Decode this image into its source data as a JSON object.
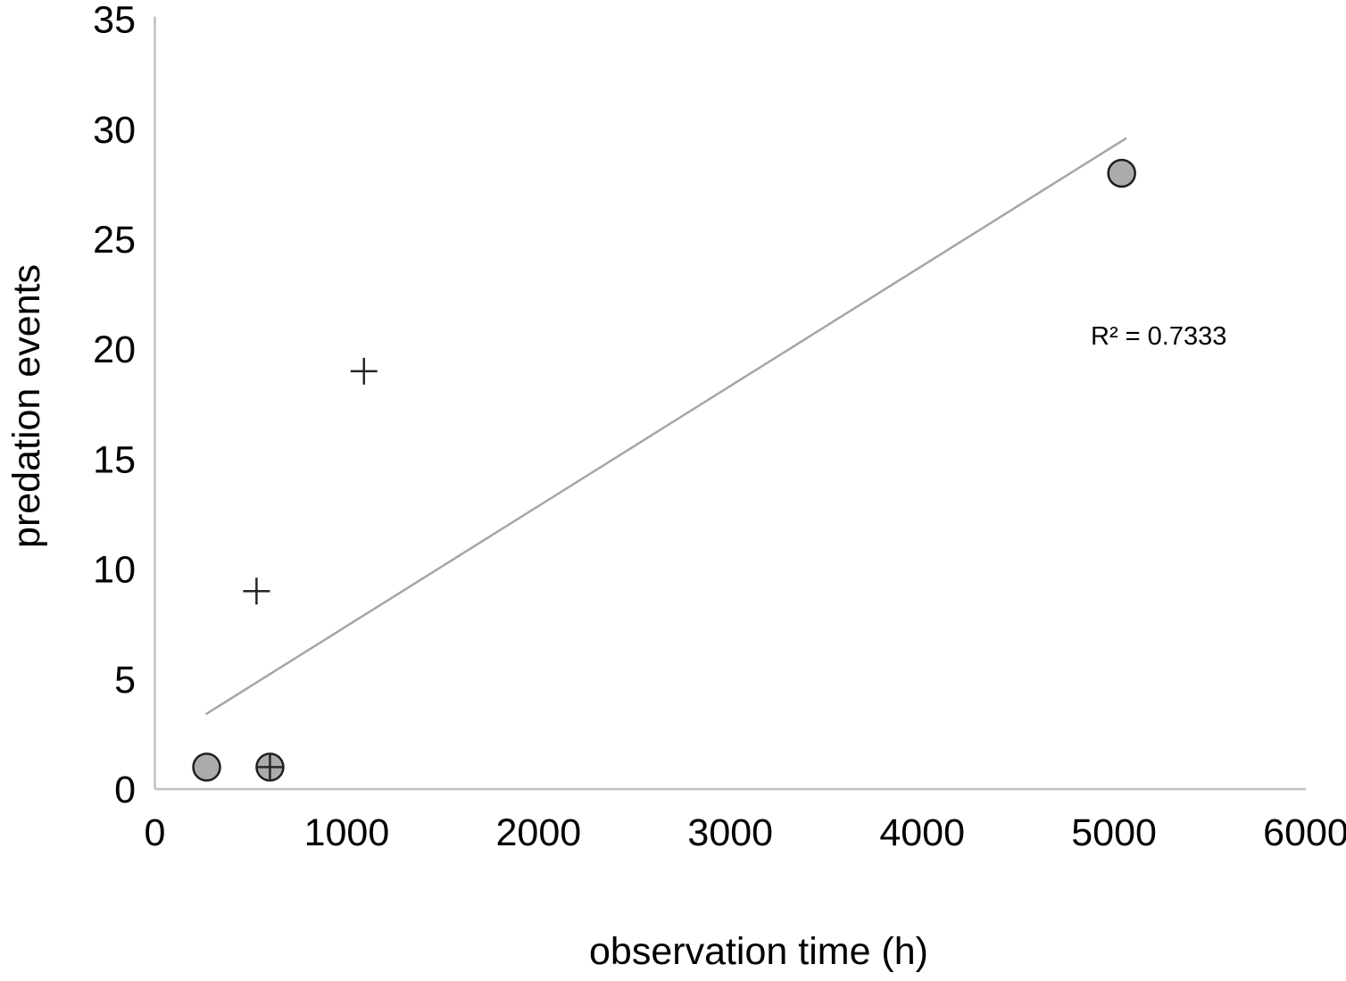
{
  "chart_data": {
    "type": "scatter",
    "title": "",
    "xlabel": "observation time (h)",
    "ylabel": "predation events",
    "xlim": [
      0,
      6000
    ],
    "ylim": [
      0,
      35
    ],
    "x_ticks": [
      0,
      1000,
      2000,
      3000,
      4000,
      5000,
      6000
    ],
    "y_ticks": [
      0,
      5,
      10,
      15,
      20,
      25,
      30,
      35
    ],
    "grid": false,
    "legend": "none",
    "series": [
      {
        "name": "gray-circle-markers",
        "marker": "circle",
        "fill": "#ababab",
        "stroke": "#1f1f1f",
        "points": [
          [
            270,
            1
          ],
          [
            600,
            1
          ],
          [
            5040,
            28
          ]
        ]
      },
      {
        "name": "plus-markers",
        "marker": "plus",
        "stroke": "#262626",
        "points": [
          [
            530,
            9
          ],
          [
            600,
            1
          ],
          [
            1090,
            19
          ]
        ]
      }
    ],
    "trendline": {
      "x1": 265,
      "y1": 3.4,
      "x2": 5065,
      "y2": 29.6,
      "color": "#a6a6a6",
      "r_squared": 0.7333
    },
    "annotation": {
      "text": "R² = 0.7333"
    }
  },
  "colors": {
    "axis_line": "#c0c0c0",
    "text": "#000000",
    "background": "#ffffff"
  }
}
